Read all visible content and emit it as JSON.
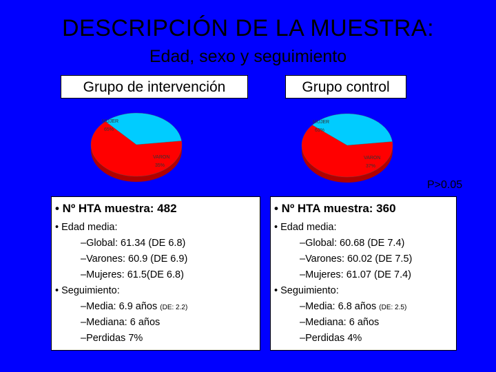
{
  "title": "DESCRIPCIÓN DE LA MUESTRA:",
  "subtitle": "Edad, sexo y seguimiento",
  "groups": {
    "intervention": {
      "label": "Grupo de intervención",
      "chart_data": {
        "type": "pie",
        "slices": [
          {
            "label": "MUJER",
            "value": 65,
            "display": "65%",
            "color": "#ff0000"
          },
          {
            "label": "VARON",
            "value": 35,
            "display": "35%",
            "color": "#00ccff"
          }
        ]
      }
    },
    "control": {
      "label": "Grupo control",
      "chart_data": {
        "type": "pie",
        "slices": [
          {
            "label": "MUJER",
            "value": 63,
            "display": "63%",
            "color": "#ff0000"
          },
          {
            "label": "VARON",
            "value": 37,
            "display": "37%",
            "color": "#00ccff"
          }
        ]
      }
    }
  },
  "p_value": "P>0.05",
  "left_panel": {
    "header": "• Nº HTA muestra: 482",
    "age_heading": "• Edad media:",
    "global": "–Global: 61.34 (DE 6.8)",
    "men": "–Varones: 60.9 (DE 6.9)",
    "women": "–Mujeres: 61.5(DE 6.8)",
    "followup_heading": "• Seguimiento:",
    "mean": "–Media: 6.9 años",
    "mean_sd": "(DE: 2.2)",
    "median": "–Mediana: 6 años",
    "losses": "–Perdidas 7%"
  },
  "right_panel": {
    "header": "• Nº HTA muestra: 360",
    "age_heading": "• Edad media:",
    "global": "–Global: 60.68 (DE 7.4)",
    "men": "–Varones: 60.02 (DE 7.5)",
    "women": "–Mujeres: 61.07 (DE 7.4)",
    "followup_heading": "• Seguimiento:",
    "mean": "–Media: 6.8 años",
    "mean_sd": "(DE: 2.5)",
    "median": "–Mediana: 6 años",
    "losses": "–Perdidas 4%"
  }
}
